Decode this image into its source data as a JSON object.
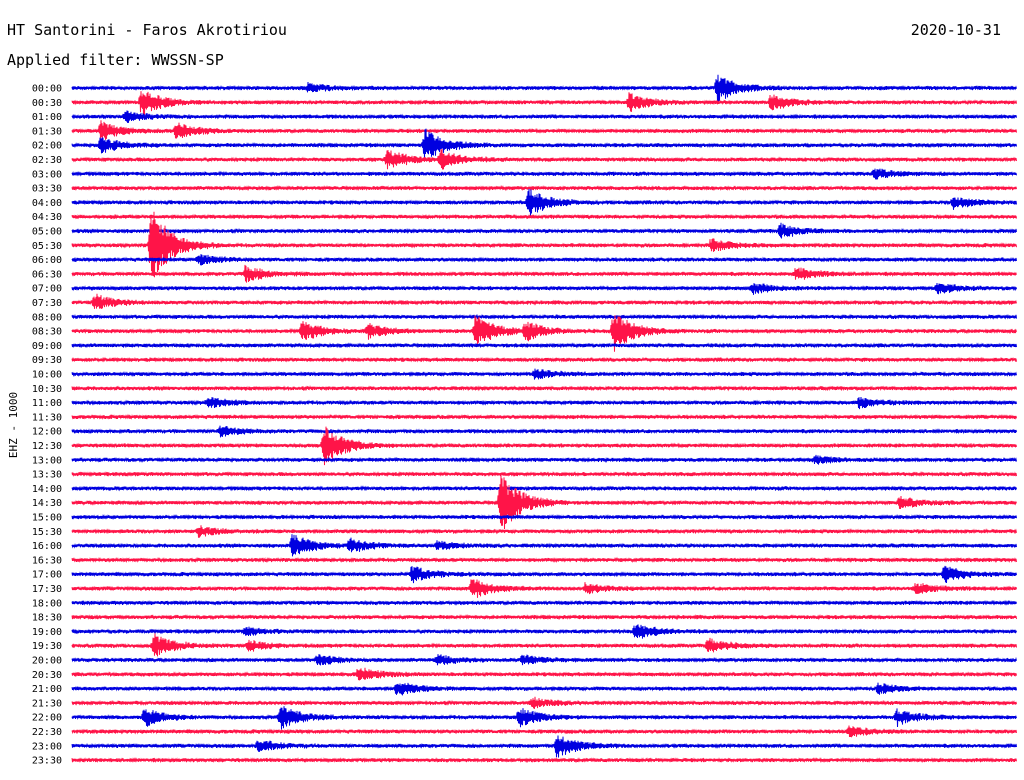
{
  "header": {
    "station": "HT Santorini - Faros Akrotiriou",
    "date": "2020-10-31",
    "filter_label": "Applied filter: WWSSN-SP"
  },
  "chart_data": {
    "type": "line",
    "title": "HT Santorini - Faros Akrotiriou",
    "ylabel": "EHZ - 1000",
    "xlabel": "",
    "grid": false,
    "colors": [
      "#0000e0",
      "#ff1448"
    ],
    "row_labels": [
      "00:00",
      "00:30",
      "01:00",
      "01:30",
      "02:00",
      "02:30",
      "03:00",
      "03:30",
      "04:00",
      "04:30",
      "05:00",
      "05:30",
      "06:00",
      "06:30",
      "07:00",
      "07:30",
      "08:00",
      "08:30",
      "09:00",
      "09:30",
      "10:00",
      "10:30",
      "11:00",
      "11:30",
      "12:00",
      "12:30",
      "13:00",
      "13:30",
      "14:00",
      "14:30",
      "15:00",
      "15:30",
      "16:00",
      "16:30",
      "17:00",
      "17:30",
      "18:00",
      "18:30",
      "19:00",
      "19:30",
      "20:00",
      "20:30",
      "21:00",
      "21:30",
      "22:00",
      "22:30",
      "23:00",
      "23:30"
    ],
    "minutes_per_row": 30,
    "events": [
      {
        "row": 0,
        "minute": 7.5,
        "amp": 5
      },
      {
        "row": 0,
        "minute": 20.5,
        "amp": 14
      },
      {
        "row": 1,
        "minute": 17.7,
        "amp": 9
      },
      {
        "row": 1,
        "minute": 22.2,
        "amp": 8
      },
      {
        "row": 1,
        "minute": 2.2,
        "amp": 14
      },
      {
        "row": 2,
        "minute": 1.7,
        "amp": 5
      },
      {
        "row": 3,
        "minute": 0.9,
        "amp": 9
      },
      {
        "row": 3,
        "minute": 3.3,
        "amp": 8
      },
      {
        "row": 4,
        "minute": 11.2,
        "amp": 16
      },
      {
        "row": 4,
        "minute": 0.9,
        "amp": 8
      },
      {
        "row": 5,
        "minute": 10.0,
        "amp": 10
      },
      {
        "row": 5,
        "minute": 11.7,
        "amp": 9
      },
      {
        "row": 6,
        "minute": 25.5,
        "amp": 5
      },
      {
        "row": 8,
        "minute": 14.5,
        "amp": 14
      },
      {
        "row": 8,
        "minute": 28.0,
        "amp": 6
      },
      {
        "row": 10,
        "minute": 22.5,
        "amp": 7
      },
      {
        "row": 11,
        "minute": 2.5,
        "amp": 40
      },
      {
        "row": 11,
        "minute": 20.3,
        "amp": 6
      },
      {
        "row": 12,
        "minute": 4.0,
        "amp": 5
      },
      {
        "row": 13,
        "minute": 5.5,
        "amp": 8
      },
      {
        "row": 13,
        "minute": 23.0,
        "amp": 6
      },
      {
        "row": 14,
        "minute": 21.6,
        "amp": 5
      },
      {
        "row": 14,
        "minute": 27.5,
        "amp": 5
      },
      {
        "row": 15,
        "minute": 0.7,
        "amp": 8
      },
      {
        "row": 17,
        "minute": 7.3,
        "amp": 10
      },
      {
        "row": 17,
        "minute": 9.4,
        "amp": 7
      },
      {
        "row": 17,
        "minute": 12.8,
        "amp": 16
      },
      {
        "row": 17,
        "minute": 14.4,
        "amp": 9
      },
      {
        "row": 17,
        "minute": 17.2,
        "amp": 20
      },
      {
        "row": 20,
        "minute": 14.7,
        "amp": 5
      },
      {
        "row": 22,
        "minute": 4.3,
        "amp": 5
      },
      {
        "row": 22,
        "minute": 25.0,
        "amp": 5
      },
      {
        "row": 24,
        "minute": 4.7,
        "amp": 5
      },
      {
        "row": 25,
        "minute": 8.0,
        "amp": 20
      },
      {
        "row": 26,
        "minute": 23.6,
        "amp": 4
      },
      {
        "row": 29,
        "minute": 13.6,
        "amp": 32
      },
      {
        "row": 29,
        "minute": 26.3,
        "amp": 6
      },
      {
        "row": 31,
        "minute": 4.0,
        "amp": 5
      },
      {
        "row": 32,
        "minute": 7.0,
        "amp": 11
      },
      {
        "row": 32,
        "minute": 8.8,
        "amp": 7
      },
      {
        "row": 32,
        "minute": 11.6,
        "amp": 4
      },
      {
        "row": 34,
        "minute": 10.8,
        "amp": 8
      },
      {
        "row": 34,
        "minute": 27.7,
        "amp": 8
      },
      {
        "row": 35,
        "minute": 12.7,
        "amp": 10
      },
      {
        "row": 35,
        "minute": 16.3,
        "amp": 5
      },
      {
        "row": 35,
        "minute": 26.8,
        "amp": 5
      },
      {
        "row": 38,
        "minute": 5.5,
        "amp": 4
      },
      {
        "row": 38,
        "minute": 17.9,
        "amp": 8
      },
      {
        "row": 39,
        "minute": 2.6,
        "amp": 11
      },
      {
        "row": 39,
        "minute": 5.6,
        "amp": 5
      },
      {
        "row": 39,
        "minute": 20.2,
        "amp": 7
      },
      {
        "row": 40,
        "minute": 7.8,
        "amp": 5
      },
      {
        "row": 40,
        "minute": 11.6,
        "amp": 5
      },
      {
        "row": 40,
        "minute": 14.3,
        "amp": 5
      },
      {
        "row": 41,
        "minute": 9.1,
        "amp": 7
      },
      {
        "row": 42,
        "minute": 10.3,
        "amp": 7
      },
      {
        "row": 42,
        "minute": 25.6,
        "amp": 5
      },
      {
        "row": 43,
        "minute": 14.6,
        "amp": 5
      },
      {
        "row": 44,
        "minute": 2.3,
        "amp": 9
      },
      {
        "row": 44,
        "minute": 6.6,
        "amp": 12
      },
      {
        "row": 44,
        "minute": 14.2,
        "amp": 10
      },
      {
        "row": 44,
        "minute": 26.2,
        "amp": 8
      },
      {
        "row": 45,
        "minute": 24.7,
        "amp": 5
      },
      {
        "row": 46,
        "minute": 5.9,
        "amp": 6
      },
      {
        "row": 46,
        "minute": 15.4,
        "amp": 12
      }
    ]
  }
}
